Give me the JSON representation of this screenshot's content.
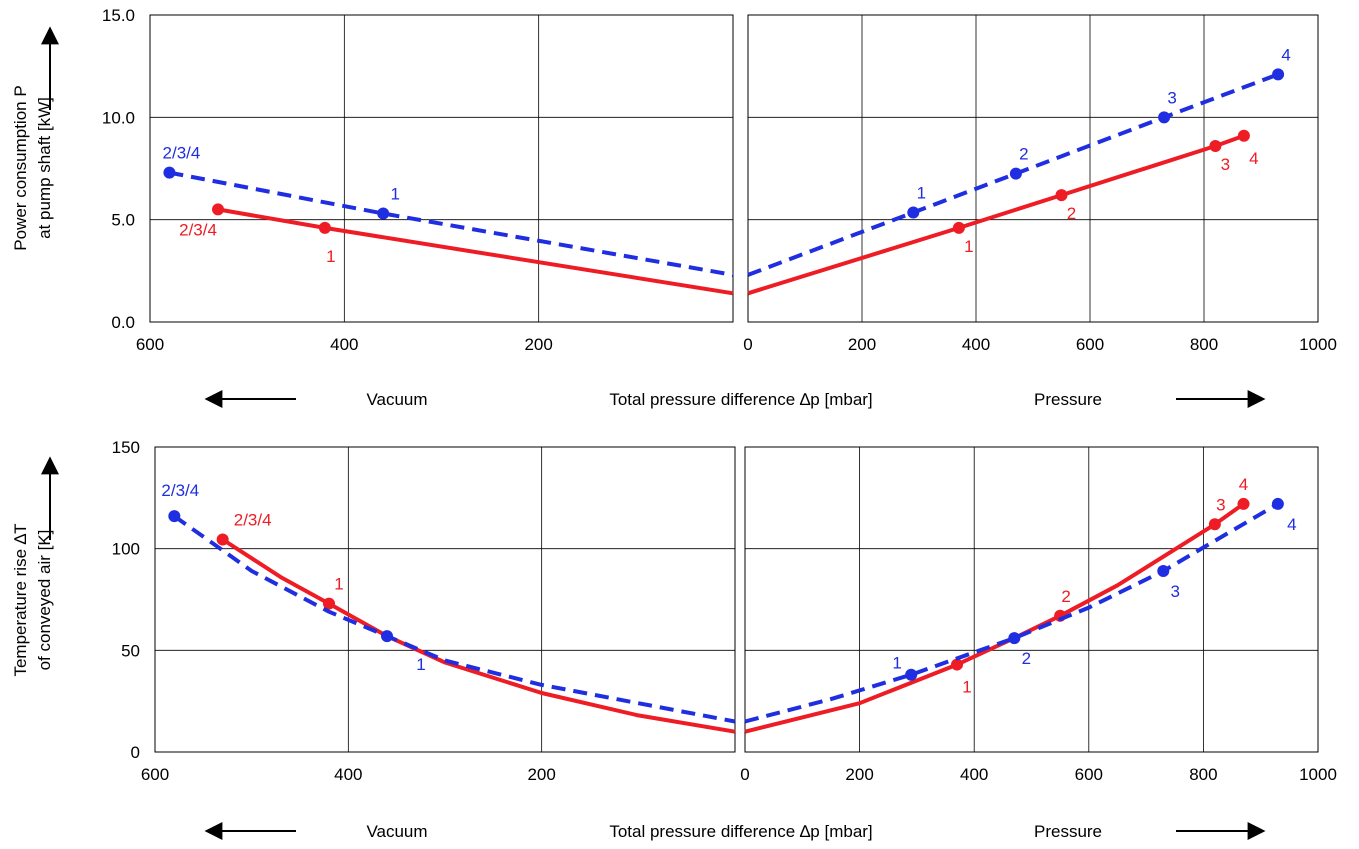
{
  "colors": {
    "red": "#ee1c24",
    "blue": "#1f2ee0",
    "grid": "#000000"
  },
  "chart_data": [
    {
      "type": "line",
      "ylabel_lines": [
        "Power consumption P",
        "at pump shaft [kW]"
      ],
      "ylim": [
        0,
        15
      ],
      "yticks": [
        "0.0",
        "5.0",
        "10.0",
        "15.0"
      ],
      "ytick_values": [
        0,
        5,
        10,
        15
      ],
      "vacuum_xlim": [
        600,
        0
      ],
      "vacuum_xticks": [
        "600",
        "400",
        "200"
      ],
      "vacuum_xtick_values": [
        600,
        400,
        200
      ],
      "pressure_xlim": [
        0,
        1000
      ],
      "pressure_xticks": [
        "0",
        "200",
        "400",
        "600",
        "800",
        "1000"
      ],
      "pressure_xtick_values": [
        0,
        200,
        400,
        600,
        800,
        1000
      ],
      "xlabel_left": "Vacuum",
      "xlabel_center": "Total pressure difference ∆p [mbar]",
      "xlabel_right": "Pressure",
      "y_arrow": "↑",
      "series": [
        {
          "style": "red-solid",
          "vacuum_x": [
            530,
            420,
            0
          ],
          "vacuum_y": [
            5.5,
            4.6,
            1.4
          ],
          "vacuum_marker_idx": [
            0,
            1
          ],
          "vacuum_point_labels": [
            "2/3/4",
            "1"
          ],
          "pressure_x": [
            0,
            370,
            550,
            820,
            870
          ],
          "pressure_y": [
            1.4,
            4.6,
            6.2,
            8.6,
            9.1
          ],
          "pressure_marker_idx": [
            1,
            2,
            3,
            4
          ],
          "pressure_point_labels": [
            "1",
            "2",
            "3",
            "4"
          ]
        },
        {
          "style": "blue-dashed",
          "vacuum_x": [
            580,
            360,
            0
          ],
          "vacuum_y": [
            7.3,
            5.3,
            2.3
          ],
          "vacuum_marker_idx": [
            0,
            1
          ],
          "vacuum_point_labels": [
            "2/3/4",
            "1"
          ],
          "pressure_x": [
            0,
            290,
            470,
            730,
            930
          ],
          "pressure_y": [
            2.3,
            5.35,
            7.25,
            10.0,
            12.1
          ],
          "pressure_marker_idx": [
            1,
            2,
            3,
            4
          ],
          "pressure_point_labels": [
            "1",
            "2",
            "3",
            "4"
          ]
        }
      ]
    },
    {
      "type": "line",
      "ylabel_lines": [
        "Temperature rise ∆T",
        "of conveyed air [K]"
      ],
      "ylim": [
        0,
        150
      ],
      "yticks": [
        "0",
        "50",
        "100",
        "150"
      ],
      "ytick_values": [
        0,
        50,
        100,
        150
      ],
      "vacuum_xlim": [
        600,
        0
      ],
      "vacuum_xticks": [
        "600",
        "400",
        "200"
      ],
      "vacuum_xtick_values": [
        600,
        400,
        200
      ],
      "pressure_xlim": [
        0,
        1000
      ],
      "pressure_xticks": [
        "0",
        "200",
        "400",
        "600",
        "800",
        "1000"
      ],
      "pressure_xtick_values": [
        0,
        200,
        400,
        600,
        800,
        1000
      ],
      "xlabel_left": "Vacuum",
      "xlabel_center": "Total pressure difference ∆p [mbar]",
      "xlabel_right": "Pressure",
      "y_arrow": "↑",
      "series": [
        {
          "style": "red-solid",
          "vacuum_x": [
            530,
            470,
            420,
            360,
            300,
            200,
            100,
            0
          ],
          "vacuum_y": [
            104.5,
            86,
            73,
            57,
            44,
            29,
            18,
            10
          ],
          "vacuum_marker_idx": [
            0,
            2
          ],
          "vacuum_point_labels": [
            "2/3/4",
            "1"
          ],
          "pressure_x": [
            0,
            200,
            370,
            470,
            550,
            650,
            820,
            870
          ],
          "pressure_y": [
            10,
            24,
            43,
            56,
            67,
            82,
            112,
            122
          ],
          "pressure_marker_idx": [
            2,
            4,
            6,
            7
          ],
          "pressure_point_labels": [
            "1",
            "2",
            "3",
            "4"
          ]
        },
        {
          "style": "blue-dashed",
          "vacuum_x": [
            580,
            500,
            420,
            360,
            300,
            200,
            100,
            0
          ],
          "vacuum_y": [
            116,
            89,
            69,
            57,
            45,
            33,
            24,
            15
          ],
          "vacuum_marker_idx": [
            0,
            3
          ],
          "vacuum_point_labels": [
            "2/3/4",
            "1"
          ],
          "pressure_x": [
            0,
            150,
            290,
            470,
            600,
            730,
            930
          ],
          "pressure_y": [
            15,
            26,
            38,
            56,
            71,
            89,
            122
          ],
          "pressure_marker_idx": [
            2,
            3,
            5,
            6
          ],
          "pressure_point_labels": [
            "1",
            "2",
            "3",
            "4"
          ]
        }
      ]
    }
  ]
}
